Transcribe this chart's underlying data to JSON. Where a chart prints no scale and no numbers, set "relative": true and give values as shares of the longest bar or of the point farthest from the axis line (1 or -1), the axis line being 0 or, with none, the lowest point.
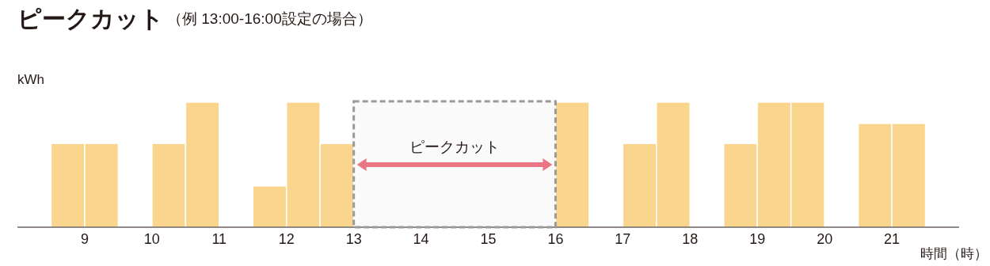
{
  "chart_data": {
    "type": "bar",
    "title": "ピークカット",
    "subtitle": "（例 13:00-16:00設定の場合）",
    "xlabel": "時間（時）",
    "ylabel": "kWh",
    "relative": true,
    "color": "#fad58d",
    "x": [
      8.75,
      9.25,
      10.25,
      10.75,
      11.75,
      12.25,
      12.75,
      16.25,
      17.25,
      17.75,
      18.75,
      19.25,
      19.75,
      20.75,
      21.25
    ],
    "values": [
      0.67,
      0.67,
      0.67,
      1,
      0.33,
      1,
      0.67,
      1,
      0.67,
      1,
      0.67,
      1,
      1,
      0.83,
      0.83
    ],
    "xlim": [
      8,
      22
    ],
    "xticks": [
      9,
      10,
      11,
      12,
      13,
      14,
      15,
      16,
      17,
      18,
      19,
      20,
      21
    ],
    "grid": false,
    "bands": [
      {
        "axis": "x",
        "from": 13,
        "to": 16,
        "label": "ピークカット",
        "color": "#9a9a9a"
      }
    ]
  }
}
